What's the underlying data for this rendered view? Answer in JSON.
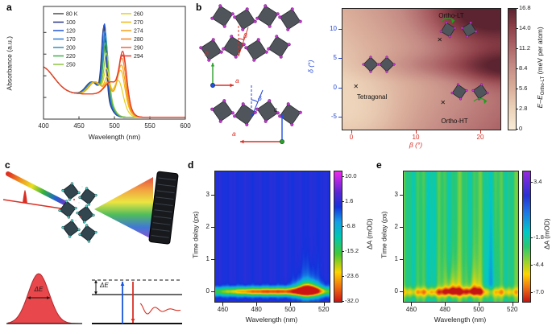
{
  "panels": {
    "a": {
      "label": "a"
    },
    "b": {
      "label": "b",
      "beta": "β",
      "delta": "δ",
      "axis_b": "b",
      "axis_a1": "a",
      "axis_c": "c",
      "axis_a2": "a"
    },
    "c": {
      "label": "c",
      "delta_e_pulse": "ΔE",
      "delta_e_levels": "ΔE"
    },
    "d": {
      "label": "d"
    },
    "e": {
      "label": "e"
    }
  },
  "chart_data": [
    {
      "id": "a",
      "type": "line",
      "xlabel": "Wavelength (nm)",
      "ylabel": "Absorbance (a.u.)",
      "x_range": [
        400,
        600
      ],
      "x_ticks": [
        400,
        450,
        500,
        550,
        600
      ],
      "y_range": [
        0,
        1.3
      ],
      "series": [
        {
          "label": "80 K",
          "color": "#4d4d4d",
          "peaks": [
            {
              "nm": 485,
              "h": 0.78,
              "w": 4.5
            }
          ]
        },
        {
          "label": "100",
          "color": "#27348b",
          "peaks": [
            {
              "nm": 485.5,
              "h": 0.8,
              "w": 4.5
            }
          ]
        },
        {
          "label": "120",
          "color": "#1f56d6",
          "peaks": [
            {
              "nm": 486,
              "h": 0.82,
              "w": 4.5
            }
          ]
        },
        {
          "label": "170",
          "color": "#2e79d9",
          "peaks": [
            {
              "nm": 487,
              "h": 0.74,
              "w": 4.6
            }
          ]
        },
        {
          "label": "200",
          "color": "#2f8fbf",
          "peaks": [
            {
              "nm": 487.5,
              "h": 0.68,
              "w": 4.8
            }
          ]
        },
        {
          "label": "220",
          "color": "#3fae4a",
          "peaks": [
            {
              "nm": 488,
              "h": 0.6,
              "w": 5
            }
          ]
        },
        {
          "label": "250",
          "color": "#8cc63f",
          "peaks": [
            {
              "nm": 489,
              "h": 0.48,
              "w": 5
            }
          ]
        },
        {
          "label": "260",
          "color": "#e3cf1f",
          "peaks": [
            {
              "nm": 489,
              "h": 0.28,
              "w": 5
            },
            {
              "nm": 506,
              "h": 0.18,
              "w": 7
            }
          ]
        },
        {
          "label": "270",
          "color": "#f2b711",
          "peaks": [
            {
              "nm": 490,
              "h": 0.18,
              "w": 5
            },
            {
              "nm": 509,
              "h": 0.3,
              "w": 7
            }
          ]
        },
        {
          "label": "274",
          "color": "#f59f16",
          "peaks": [
            {
              "nm": 490,
              "h": 0.12,
              "w": 5
            },
            {
              "nm": 510,
              "h": 0.36,
              "w": 7
            }
          ]
        },
        {
          "label": "280",
          "color": "#f5831f",
          "peaks": [
            {
              "nm": 511,
              "h": 0.42,
              "w": 7
            }
          ]
        },
        {
          "label": "290",
          "color": "#ef663b",
          "peaks": [
            {
              "nm": 512,
              "h": 0.46,
              "w": 7
            }
          ]
        },
        {
          "label": "294",
          "color": "#e63a2e",
          "peaks": [
            {
              "nm": 512,
              "h": 0.5,
              "w": 7
            }
          ]
        }
      ]
    },
    {
      "id": "b_phase",
      "type": "heatmap",
      "xlabel": "β (°)",
      "ylabel": "δ (°)",
      "x_color": "#d92f26",
      "y_color": "#2447d9",
      "x_range": [
        -1.5,
        23
      ],
      "y_range": [
        -7,
        13.5
      ],
      "x_ticks": [
        0,
        10,
        20
      ],
      "y_ticks": [
        10,
        5,
        0,
        -5
      ],
      "colorbar": {
        "ticks": [
          "16.8",
          "14.0",
          "11.2",
          "8.4",
          "5.6",
          "2.8",
          "0"
        ],
        "vmin": 0,
        "vmax": 16.8,
        "label_pre": "E–E",
        "label_sub": "Ortho-LT",
        "label_post": " (meV per atom)"
      },
      "stops": [
        {
          "v": 0,
          "c": "#f8ecd9"
        },
        {
          "v": 3,
          "c": "#ecd2b8"
        },
        {
          "v": 6,
          "c": "#d9ac99"
        },
        {
          "v": 9,
          "c": "#c48a84"
        },
        {
          "v": 12,
          "c": "#a95f63"
        },
        {
          "v": 14.5,
          "c": "#8a3d46"
        },
        {
          "v": 16.8,
          "c": "#5c2430"
        }
      ],
      "base": 3.5,
      "features": [
        {
          "type": "ramp",
          "kx": 0.28,
          "ky": 0.22,
          "x0": 0,
          "y0": 1
        },
        {
          "type": "gauss",
          "x": 20,
          "y": 13,
          "sx": 6,
          "sy": 4,
          "amp": 7
        },
        {
          "type": "gauss",
          "x": 23,
          "y": 3.5,
          "sx": 5,
          "sy": 2.2,
          "amp": 6
        },
        {
          "type": "gauss",
          "x": 12,
          "y": 3.8,
          "sx": 6,
          "sy": 1.6,
          "amp": 2.5
        },
        {
          "type": "gauss",
          "x": 2,
          "y": -5,
          "sx": 5,
          "sy": 4,
          "amp": -2
        }
      ],
      "annotations": [
        {
          "text": "Ortho-LT",
          "x": 15.5,
          "y": 12.3,
          "color": "#111111"
        },
        {
          "text": "Tetragonal",
          "x": 3.2,
          "y": -1.6,
          "color": "#111111"
        },
        {
          "text": "Ortho-HT",
          "x": 16,
          "y": -5.7,
          "color": "#111111"
        }
      ],
      "marker_glyph": "✕",
      "markers": [
        {
          "x": 0.8,
          "y": 0.1
        },
        {
          "x": 13.8,
          "y": 8.0
        },
        {
          "x": 14.3,
          "y": -2.6
        }
      ]
    },
    {
      "id": "d",
      "type": "heatmap",
      "xlabel": "Wavelength (nm)",
      "ylabel": "Time delay (ps)",
      "x_range": [
        455,
        523
      ],
      "y_range": [
        -0.3,
        3.75
      ],
      "x_ticks": [
        460,
        480,
        500,
        520
      ],
      "y_ticks": [
        0,
        1,
        2,
        3
      ],
      "colorbar": {
        "ticks": [
          "10.0",
          "1.6",
          "-6.8",
          "-15.2",
          "-23.6",
          "-32.0"
        ],
        "vmin": -32,
        "vmax": 12,
        "label": "ΔA (mOD)"
      },
      "stops": [
        {
          "v": -32,
          "c": "#cc1414"
        },
        {
          "v": -27,
          "c": "#f07010"
        },
        {
          "v": -22,
          "c": "#ffd400"
        },
        {
          "v": -16,
          "c": "#46c832"
        },
        {
          "v": -10,
          "c": "#00c8b4"
        },
        {
          "v": -5,
          "c": "#14a0e6"
        },
        {
          "v": 0,
          "c": "#1432dc"
        },
        {
          "v": 5,
          "c": "#5a28d2"
        },
        {
          "v": 12,
          "c": "#f028f0"
        }
      ],
      "base": 0.8,
      "features": [
        {
          "type": "streaks",
          "amp": 0.5,
          "f1": 0.8,
          "f2": 2.1
        },
        {
          "type": "gauss",
          "x": 489,
          "y": 0.02,
          "sx": 30,
          "sy": 0.09,
          "amp": -30
        },
        {
          "type": "gauss",
          "x": 510,
          "y": 0.05,
          "sx": 5,
          "sy": 0.16,
          "amp": -26
        },
        {
          "type": "column",
          "x": 510,
          "sx": 4,
          "y": 0.1,
          "tau": 0.35,
          "amp": -12
        }
      ]
    },
    {
      "id": "e",
      "type": "heatmap",
      "xlabel": "Wavelength (nm)",
      "ylabel": "Time delay (ps)",
      "x_range": [
        455,
        523
      ],
      "y_range": [
        -0.3,
        3.75
      ],
      "x_ticks": [
        460,
        480,
        500,
        520
      ],
      "y_ticks": [
        0,
        1,
        2,
        3
      ],
      "colorbar": {
        "ticks": [
          "3.4",
          "-1.8",
          "-4.4",
          "-7.0"
        ],
        "vmin": -7.8,
        "vmax": 4.5,
        "label": "ΔA (mOD)"
      },
      "stops": [
        {
          "v": -7.8,
          "c": "#c41414"
        },
        {
          "v": -6.4,
          "c": "#f07814"
        },
        {
          "v": -5.2,
          "c": "#ffd400"
        },
        {
          "v": -4.0,
          "c": "#96d232"
        },
        {
          "v": -2.6,
          "c": "#2cc86e"
        },
        {
          "v": -1.2,
          "c": "#00c8c8"
        },
        {
          "v": 0.6,
          "c": "#1e78e6"
        },
        {
          "v": 2.2,
          "c": "#2832d2"
        },
        {
          "v": 4.5,
          "c": "#9628dc"
        }
      ],
      "base": -2.6,
      "features": [
        {
          "type": "streaks",
          "amp": 0.7,
          "f1": 0.55,
          "f2": 1.5
        },
        {
          "type": "gauss",
          "x": 489,
          "y": 0.0,
          "sx": 30,
          "sy": 0.1,
          "amp": -4.5
        },
        {
          "type": "column",
          "x": 484,
          "sx": 3.5,
          "y": 0.05,
          "tau": 0.5,
          "amp": -3.5
        },
        {
          "type": "column",
          "x": 497,
          "sx": 3,
          "y": 0.05,
          "tau": 0.6,
          "amp": -3
        },
        {
          "type": "column",
          "x": 507,
          "sx": 3,
          "y": 0.0,
          "tau": 2.5,
          "amp": 1.8
        },
        {
          "type": "gauss",
          "x": 470,
          "y": 2,
          "sx": 6,
          "sy": 2,
          "amp": 0.6
        }
      ]
    }
  ]
}
